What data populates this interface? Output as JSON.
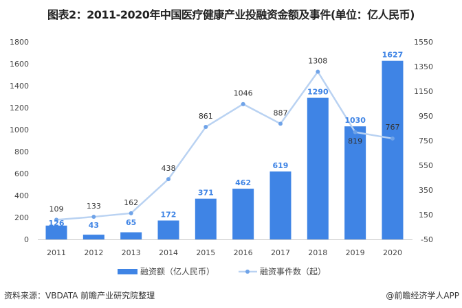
{
  "chart_data": {
    "type": "bar+line",
    "title": "图表2：2011-2020年中国医疗健康产业投融资金额及事件(单位：亿人民币)",
    "categories": [
      "2011",
      "2012",
      "2013",
      "2014",
      "2015",
      "2016",
      "2017",
      "2018",
      "2019",
      "2020"
    ],
    "series": [
      {
        "name": "融资额（亿人民币）",
        "type": "bar",
        "axis": "left",
        "color": "#3f84e5",
        "values": [
          126,
          43,
          65,
          172,
          371,
          462,
          619,
          1290,
          1030,
          1627
        ]
      },
      {
        "name": "融资事件数（起）",
        "type": "line",
        "axis": "right",
        "color": "#b9d2f2",
        "marker_color": "#6fa3e8",
        "values": [
          109,
          133,
          162,
          438,
          861,
          1046,
          887,
          1308,
          819,
          767
        ]
      }
    ],
    "left_axis": {
      "ylim": [
        0,
        1800
      ],
      "ticks": [
        "0",
        "200",
        "400",
        "600",
        "800",
        "1000",
        "1200",
        "1400",
        "1600",
        "1800"
      ]
    },
    "right_axis": {
      "ylim": [
        -50,
        1550
      ],
      "ticks": [
        "-50",
        "150",
        "350",
        "550",
        "750",
        "950",
        "1150",
        "1350",
        "1550"
      ]
    },
    "grid": false,
    "legend": "bottom"
  },
  "footer": {
    "source": "资料来源：VBDATA 前瞻产业研究院整理",
    "credit": "@前瞻经济学人APP"
  }
}
